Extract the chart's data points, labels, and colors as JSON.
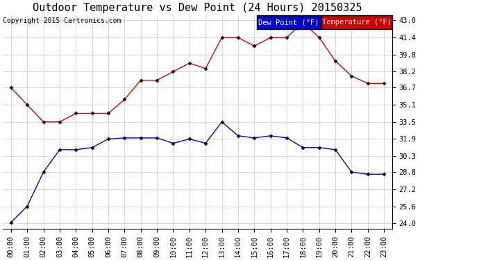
{
  "title": "Outdoor Temperature vs Dew Point (24 Hours) 20150325",
  "copyright": "Copyright 2015 Cartronics.com",
  "background_color": "#ffffff",
  "plot_bg_color": "#ffffff",
  "grid_color": "#b0b0b0",
  "x_labels": [
    "00:00",
    "01:00",
    "02:00",
    "03:00",
    "04:00",
    "05:00",
    "06:00",
    "07:00",
    "08:00",
    "09:00",
    "10:00",
    "11:00",
    "12:00",
    "13:00",
    "14:00",
    "15:00",
    "16:00",
    "17:00",
    "18:00",
    "19:00",
    "20:00",
    "21:00",
    "22:00",
    "23:00"
  ],
  "y_ticks": [
    24.0,
    25.6,
    27.2,
    28.8,
    30.3,
    31.9,
    33.5,
    35.1,
    36.7,
    38.2,
    39.8,
    41.4,
    43.0
  ],
  "temperature": [
    36.7,
    35.1,
    33.5,
    33.5,
    34.3,
    34.3,
    34.3,
    35.6,
    37.4,
    37.4,
    38.2,
    39.0,
    38.5,
    41.4,
    41.4,
    40.6,
    41.4,
    41.4,
    42.8,
    41.4,
    39.2,
    37.8,
    37.1,
    37.1
  ],
  "dew_point": [
    24.1,
    25.6,
    28.8,
    30.9,
    30.9,
    31.1,
    31.9,
    32.0,
    32.0,
    32.0,
    31.5,
    31.9,
    31.5,
    33.5,
    32.2,
    32.0,
    32.2,
    32.0,
    31.1,
    31.1,
    30.9,
    28.8,
    28.6,
    28.6
  ],
  "temp_color": "#cc0000",
  "dew_color": "#0000cc",
  "marker": "D",
  "marker_size": 2.5,
  "line_width": 1.0,
  "legend_dew_bg": "#0000cc",
  "legend_temp_bg": "#cc0000",
  "legend_text_color": "#ffffff",
  "title_fontsize": 11,
  "tick_fontsize": 7.5,
  "copyright_fontsize": 7.0
}
